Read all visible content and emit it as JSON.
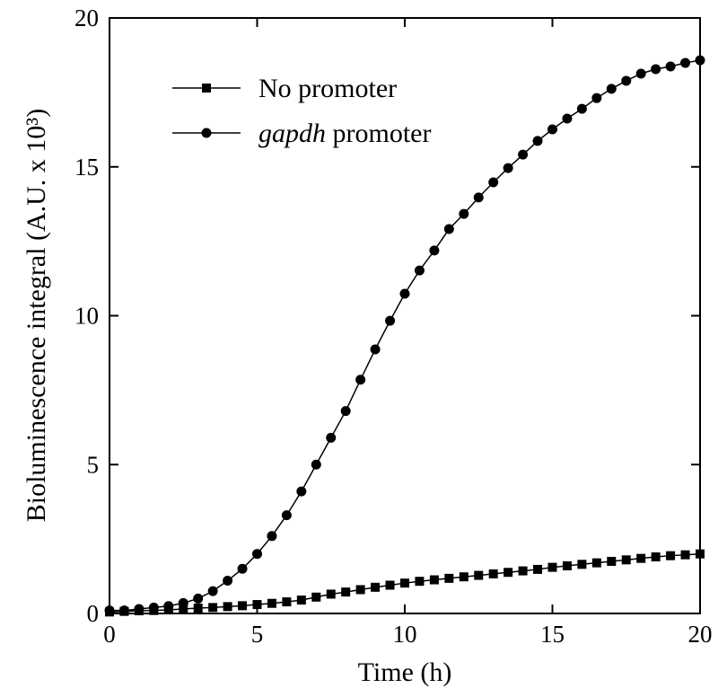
{
  "chart_data": {
    "type": "line",
    "x_label": "Time (h)",
    "y_label": "Bioluminescence integral (A.U. x 10³)",
    "x": [
      0,
      0.5,
      1,
      1.5,
      2,
      2.5,
      3,
      3.5,
      4,
      4.5,
      5,
      5.5,
      6,
      6.5,
      7,
      7.5,
      8,
      8.5,
      9,
      9.5,
      10,
      10.5,
      11,
      11.5,
      12,
      12.5,
      13,
      13.5,
      14,
      14.5,
      15,
      15.5,
      16,
      16.5,
      17,
      17.5,
      18,
      18.5,
      19,
      19.5,
      20
    ],
    "series": [
      {
        "name": "No promoter",
        "color": "#000000",
        "marker": "square",
        "values": [
          0.05,
          0.07,
          0.09,
          0.1,
          0.12,
          0.15,
          0.18,
          0.2,
          0.23,
          0.26,
          0.3,
          0.34,
          0.39,
          0.45,
          0.55,
          0.65,
          0.72,
          0.8,
          0.88,
          0.95,
          1.02,
          1.08,
          1.13,
          1.18,
          1.23,
          1.28,
          1.33,
          1.38,
          1.43,
          1.48,
          1.55,
          1.6,
          1.65,
          1.7,
          1.75,
          1.8,
          1.85,
          1.9,
          1.94,
          1.97,
          2.0
        ]
      },
      {
        "name": "gapdh promoter",
        "color": "#000000",
        "marker": "circle",
        "values": [
          0.1,
          0.1,
          0.15,
          0.2,
          0.25,
          0.35,
          0.5,
          0.75,
          1.1,
          1.5,
          2.0,
          2.6,
          3.3,
          4.1,
          5.0,
          5.9,
          6.8,
          7.85,
          8.87,
          9.83,
          10.74,
          11.52,
          12.19,
          12.91,
          13.42,
          13.97,
          14.48,
          14.96,
          15.41,
          15.87,
          16.26,
          16.62,
          16.95,
          17.31,
          17.62,
          17.89,
          18.13,
          18.28,
          18.37,
          18.49,
          18.58
        ]
      }
    ],
    "xlim": [
      0,
      20
    ],
    "xticks": [
      0,
      5,
      10,
      15,
      20
    ],
    "ylim": [
      0,
      20
    ],
    "yticks": [
      0,
      5,
      10,
      15,
      20
    ],
    "grid": false
  }
}
